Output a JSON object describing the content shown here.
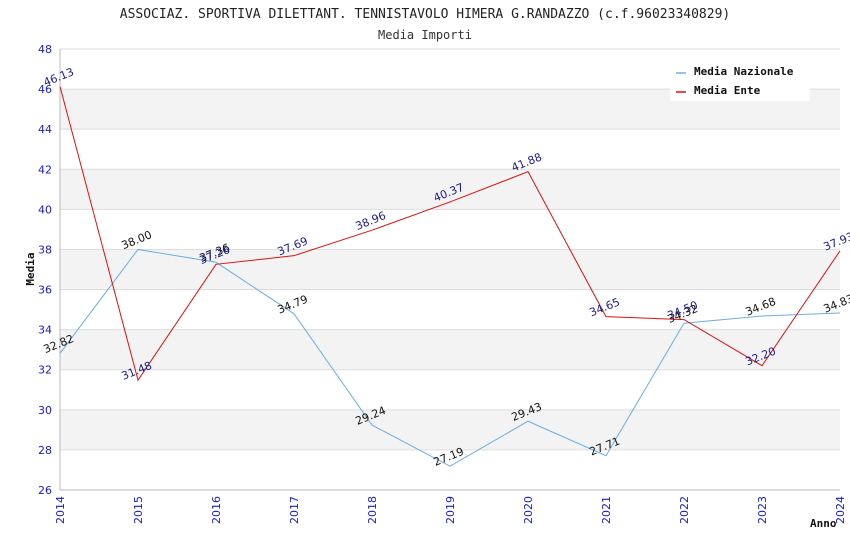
{
  "chart_data": {
    "type": "line",
    "title": "ASSOCIAZ. SPORTIVA DILETTANT. TENNISTAVOLO HIMERA G.RANDAZZO (c.f.96023340829)",
    "subtitle": "Media Importi",
    "xlabel": "Anno",
    "ylabel": "Media",
    "ylim": [
      26,
      48
    ],
    "ytick_step": 2,
    "x": [
      "2014",
      "2015",
      "2016",
      "2017",
      "2018",
      "2019",
      "2020",
      "2021",
      "2022",
      "2023",
      "2024"
    ],
    "series": [
      {
        "name": "Media Nazionale",
        "color": "#6aaee8",
        "label_color": "#111111",
        "values": [
          32.82,
          38.0,
          37.36,
          34.79,
          29.24,
          27.19,
          29.43,
          27.71,
          34.32,
          34.68,
          34.83
        ],
        "labels": [
          "32.82",
          "38.00",
          "37.36",
          "34.79",
          "29.24",
          "27.19",
          "29.43",
          "27.71",
          "34.32",
          "34.68",
          "34.83"
        ]
      },
      {
        "name": "Media Ente",
        "color": "#dd1111",
        "label_color": "#1a1a8c",
        "values": [
          46.13,
          31.48,
          37.26,
          37.69,
          38.96,
          40.37,
          41.88,
          34.65,
          34.5,
          32.2,
          37.93
        ],
        "labels": [
          "46.13",
          "31.48",
          "37.26",
          "37.69",
          "38.96",
          "40.37",
          "41.88",
          "34.65",
          "34.50",
          "32.20",
          "37.93"
        ]
      }
    ],
    "grid": true,
    "legend_position": "top-right"
  }
}
